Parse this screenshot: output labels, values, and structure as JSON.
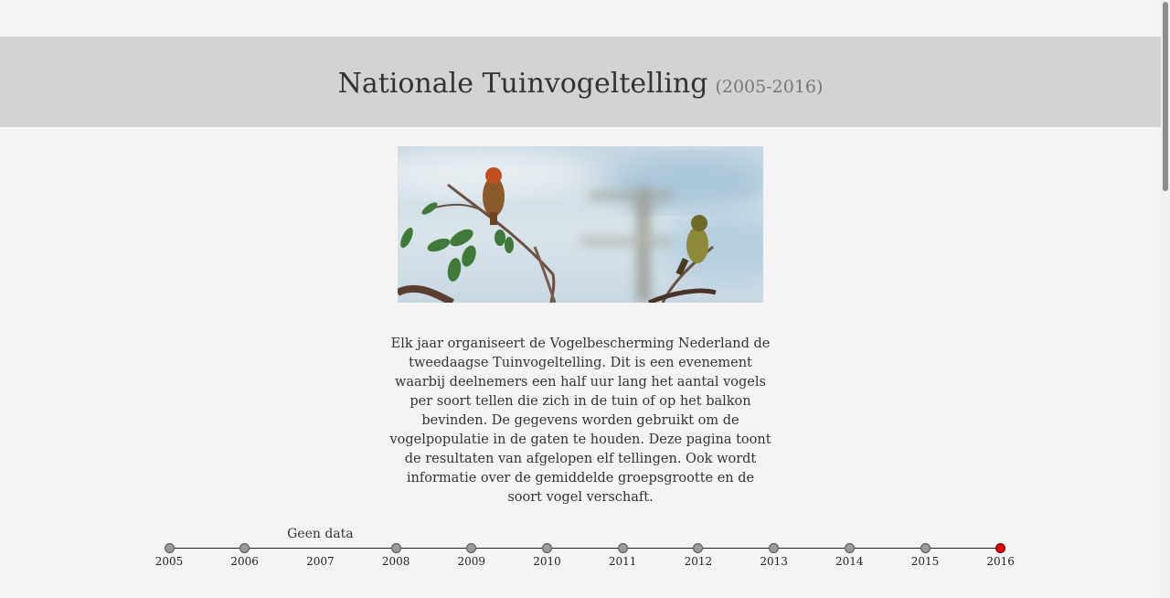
{
  "header": {
    "title": "Nationale Tuinvogeltelling",
    "subtitle": "(2005-2016)"
  },
  "hero": {
    "alt": "Twee vogels op een tak"
  },
  "intro": {
    "text": "Elk jaar organiseert de Vogelbescherming Nederland de tweedaagse Tuinvogeltelling. Dit is een evenement waarbij deelnemers een half uur lang het aantal vogels per soort tellen die zich in de tuin of op het balkon bevinden. De gegevens worden gebruikt om de vogelpopulatie in de gaten te houden. Deze pagina toont de resultaten van afgelopen elf tellingen. Ook wordt informatie over de gemiddelde groepsgrootte en de soort vogel verschaft."
  },
  "timeline": {
    "years": [
      "2005",
      "2006",
      "2007",
      "2008",
      "2009",
      "2010",
      "2011",
      "2012",
      "2013",
      "2014",
      "2015",
      "2016"
    ],
    "selected": "2016",
    "no_data_year": "2007",
    "no_data_label": "Geen data",
    "colors": {
      "dot": "#9a9a9a",
      "selected": "#e00000"
    }
  }
}
